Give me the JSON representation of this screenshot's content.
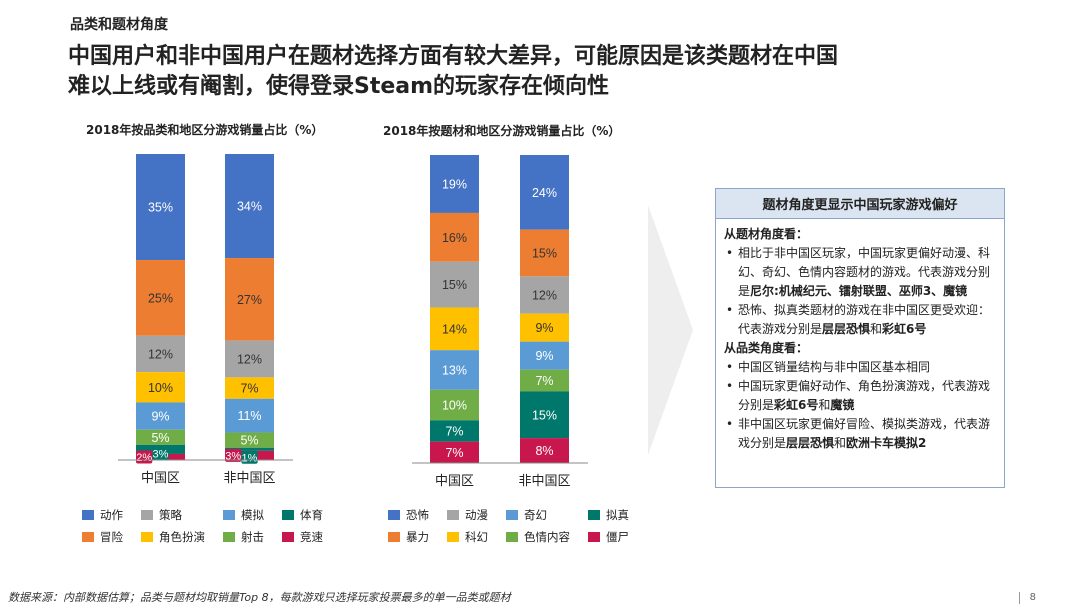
{
  "header": {
    "section": "品类和题材角度",
    "title_line1": "中国用户和非中国用户在题材选择方面有较大差异，可能原因是该类题材在中国",
    "title_line2": "难以上线或有阉割，使得登录Steam的玩家存在倾向性"
  },
  "chart_data": [
    {
      "type": "bar",
      "stacked": true,
      "title": "2018年按品类和地区分游戏销量占比（%）",
      "categories": [
        "中国区",
        "非中国区"
      ],
      "series": [
        {
          "name": "动作",
          "color": "#4472c4",
          "values": [
            35,
            34
          ]
        },
        {
          "name": "冒险",
          "color": "#ed7d31",
          "values": [
            25,
            27
          ]
        },
        {
          "name": "策略",
          "color": "#a5a5a5",
          "values": [
            12,
            12
          ]
        },
        {
          "name": "角色扮演",
          "color": "#ffc000",
          "values": [
            10,
            7
          ]
        },
        {
          "name": "模拟",
          "color": "#5b9bd5",
          "values": [
            9,
            11
          ]
        },
        {
          "name": "射击",
          "color": "#70ad47",
          "values": [
            5,
            5
          ]
        },
        {
          "name": "体育",
          "color": "#00776b",
          "values": [
            3,
            1
          ]
        },
        {
          "name": "竞速",
          "color": "#c8174d",
          "values": [
            2,
            3
          ]
        }
      ],
      "legend_order": [
        "动作",
        "策略",
        "模拟",
        "体育",
        "冒险",
        "角色扮演",
        "射击",
        "竞速"
      ]
    },
    {
      "type": "bar",
      "stacked": true,
      "title": "2018年按题材和地区分游戏销量占比（%）",
      "categories": [
        "中国区",
        "非中国区"
      ],
      "series": [
        {
          "name": "恐怖",
          "color": "#4472c4",
          "values": [
            19,
            24
          ]
        },
        {
          "name": "暴力",
          "color": "#ed7d31",
          "values": [
            16,
            15
          ]
        },
        {
          "name": "动漫",
          "color": "#a5a5a5",
          "values": [
            15,
            12
          ]
        },
        {
          "name": "科幻",
          "color": "#ffc000",
          "values": [
            14,
            9
          ]
        },
        {
          "name": "奇幻",
          "color": "#5b9bd5",
          "values": [
            13,
            9
          ]
        },
        {
          "name": "色情内容",
          "color": "#70ad47",
          "values": [
            10,
            7
          ]
        },
        {
          "name": "拟真",
          "color": "#00776b",
          "values": [
            7,
            15
          ]
        },
        {
          "name": "僵尸",
          "color": "#c8174d",
          "values": [
            7,
            8
          ]
        }
      ],
      "legend_order": [
        "恐怖",
        "动漫",
        "奇幻",
        "拟真",
        "暴力",
        "科幻",
        "色情内容",
        "僵尸"
      ]
    }
  ],
  "box": {
    "title": "题材角度更显示中国玩家游戏偏好",
    "h1": "从题材角度看：",
    "b1a": "相比于非中国区玩家，中国玩家更偏好动漫、科幻、奇幻、色情内容题材的游戏。代表游戏分别是",
    "b1b": "尼尔:机械纪元、镭射联盟、巫师3、魔镜",
    "b2a": "恐怖、拟真类题材的游戏在非中国区更受欢迎：代表游戏分别是",
    "b2b": "层层恐惧",
    "b2c": "和",
    "b2d": "彩虹6号",
    "h2": "从品类角度看：",
    "b3": "中国区销量结构与非中国区基本相同",
    "b4a": "中国玩家更偏好动作、角色扮演游戏，代表游戏分别是",
    "b4b": "彩虹6号",
    "b4c": "和",
    "b4d": "魔镜",
    "b5a": "非中国区玩家更偏好冒险、模拟类游戏，代表游戏分别是",
    "b5b": "层层恐惧",
    "b5c": "和",
    "b5d": "欧洲卡车模拟2"
  },
  "footer": {
    "source": "数据来源：内部数据估算；品类与题材均取销量Top 8，每款游戏只选择玩家投票最多的单一品类或题材",
    "page": "8"
  }
}
